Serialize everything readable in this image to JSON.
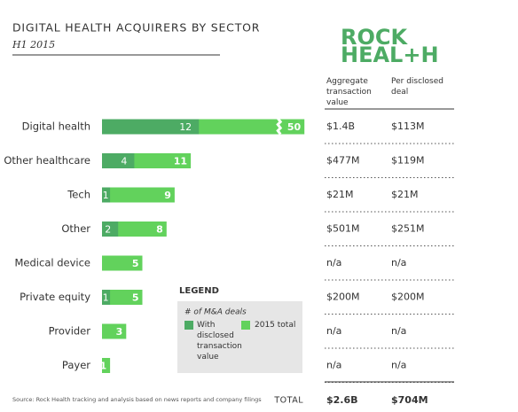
{
  "header": {
    "title": "DIGITAL HEALTH ACQUIRERS BY SECTOR",
    "subtitle": "H1 2015",
    "logo": [
      "ROCK",
      "HEAL+H"
    ]
  },
  "chart_data": {
    "type": "bar",
    "categories": [
      "Digital health",
      "Other healthcare",
      "Tech",
      "Other",
      "Medical device",
      "Private equity",
      "Provider",
      "Payer"
    ],
    "series": [
      {
        "name": "With disclosed transaction value",
        "color": "#4dab64",
        "values": [
          12,
          4,
          1,
          2,
          null,
          1,
          null,
          null
        ]
      },
      {
        "name": "2015 total",
        "color": "#62d25c",
        "values": [
          50,
          11,
          9,
          8,
          5,
          5,
          3,
          1
        ]
      }
    ],
    "legend_title": "LEGEND",
    "legend_subtitle": "# of M&A deals",
    "axis_break": true
  },
  "table": {
    "headers": [
      "Aggregate transaction value",
      "Per disclosed deal"
    ],
    "rows": [
      [
        "$1.4B",
        "$113M"
      ],
      [
        "$477M",
        "$119M"
      ],
      [
        "$21M",
        "$21M"
      ],
      [
        "$501M",
        "$251M"
      ],
      [
        "n/a",
        "n/a"
      ],
      [
        "$200M",
        "$200M"
      ],
      [
        "n/a",
        "n/a"
      ],
      [
        "n/a",
        "n/a"
      ]
    ],
    "total": [
      "TOTAL",
      "$2.6B",
      "$704M"
    ]
  },
  "footer": {
    "source": "Source: Rock Health tracking and analysis based on news reports and company filings"
  }
}
